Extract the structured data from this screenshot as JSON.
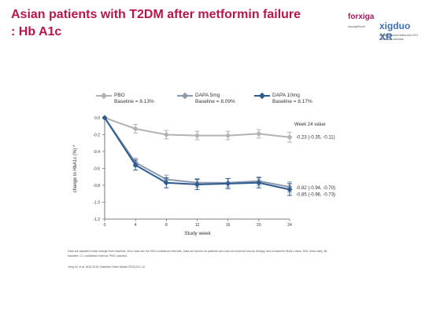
{
  "slide": {
    "title_line1": "Asian patients with T2DM after metformin failure",
    "title_line2": ": Hb A1c",
    "logo": {
      "brand1": "forxiga",
      "brand1_sub": "dapagliflozin",
      "brand2": "xigduo XR",
      "brand2_sub": "dapagliflozin/metformin HCl extended-release"
    },
    "footnote": "Data are adjusted mean change from baseline. Error bars are the 95% confidence intervals. Data are shown for patients who had not received rescue therapy, and a baseline HbA1c value. BID, twice daily; BL, baseline; CI, confidence interval; PBO, placebo.",
    "reference": "Yang W, et al. ADA 2016; Diabetes Obes Metab 2018;20:1-10."
  },
  "chart_data": {
    "type": "line",
    "title": "",
    "xlabel": "Study week",
    "ylabel": "change in HbA1c (%) *",
    "x": [
      0,
      4,
      8,
      12,
      16,
      20,
      24
    ],
    "xticks": [
      "0",
      "4",
      "8",
      "12",
      "16",
      "20",
      "24"
    ],
    "ylim": [
      -1.2,
      0.0
    ],
    "yticks": [
      0.0,
      -0.2,
      -0.4,
      -0.6,
      -0.8,
      -1.0,
      -1.2
    ],
    "ytick_labels": [
      "0.0",
      "-0.2",
      "-0.4",
      "-0.6",
      "-0.8",
      "-1.0",
      "-1.2"
    ],
    "grid": false,
    "legend_position": "top",
    "end_header": "Week 24 value",
    "series": [
      {
        "name": "PBO",
        "baseline": "Baseline = 8.13%",
        "color": "#b3b3b3",
        "values": [
          0.0,
          -0.13,
          -0.2,
          -0.21,
          -0.21,
          -0.19,
          -0.23
        ],
        "err": [
          0,
          0.05,
          0.05,
          0.05,
          0.05,
          0.05,
          0.06
        ],
        "end_label": "-0.23 (-0.35, -0.11)"
      },
      {
        "name": "DAPA 5mg",
        "baseline": "Baseline = 8.09%",
        "color": "#8a99ad",
        "values": [
          0.0,
          -0.53,
          -0.73,
          -0.77,
          -0.77,
          -0.75,
          -0.82
        ],
        "err": [
          0,
          0.05,
          0.05,
          0.05,
          0.05,
          0.05,
          0.06
        ],
        "end_label": "-0.82 (-0.94, -0.70)"
      },
      {
        "name": "DAPA 10mg",
        "baseline": "Baseline = 8.17%",
        "color": "#2f5b8f",
        "values": [
          0.0,
          -0.56,
          -0.77,
          -0.79,
          -0.78,
          -0.77,
          -0.85
        ],
        "err": [
          0,
          0.06,
          0.06,
          0.06,
          0.06,
          0.06,
          0.07
        ],
        "end_label": "-0.85 (-0.96, -0.73)"
      }
    ]
  }
}
